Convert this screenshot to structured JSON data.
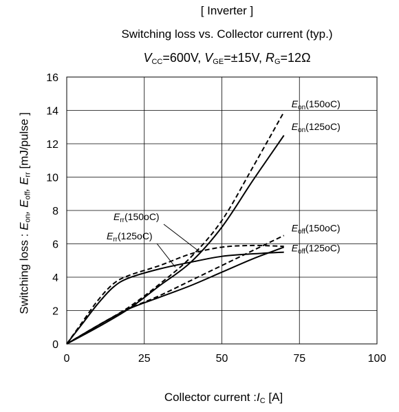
{
  "header": {
    "title": "[ Inverter ]",
    "subtitle": "Switching loss  vs.  Collector current  (typ.)",
    "conditions": {
      "vcc_sym": "V",
      "vcc_sub": "CC",
      "vcc_val": "=600V, ",
      "vge_sym": "V",
      "vge_sub": "GE",
      "vge_val": "=±15V, ",
      "rg_sym": "R",
      "rg_sub": "G",
      "rg_val": "=12Ω"
    }
  },
  "axes": {
    "xlabel_text": "Collector  current :",
    "xlabel_sym": "I",
    "xlabel_sub": "C",
    "xlabel_unit": " [A]",
    "ylabel_prefix": "Switching loss  : ",
    "ylabel_e1": "E",
    "ylabel_s1": "on",
    "ylabel_e2": ", E",
    "ylabel_s2": "off",
    "ylabel_e3": ", E",
    "ylabel_s3": "rr",
    "ylabel_unit": "  [mJ/pulse ]"
  },
  "chart_data": {
    "type": "line",
    "title": "[ Inverter ]",
    "subtitle": "Switching loss  vs.  Collector current  (typ.)",
    "xlabel": "Collector  current :IC [A]",
    "ylabel": "Switching loss  : Eon, Eoff, Err  [mJ/pulse ]",
    "xlim": [
      0,
      100
    ],
    "ylim": [
      0,
      16
    ],
    "xticks": [
      0,
      25,
      50,
      75,
      100
    ],
    "yticks": [
      0,
      2,
      4,
      6,
      8,
      10,
      12,
      14,
      16
    ],
    "grid": true,
    "series": [
      {
        "name": "Eon(150°C)",
        "style": "dashed",
        "x": [
          0,
          10,
          20,
          30,
          40,
          50,
          60,
          70
        ],
        "y": [
          0,
          1.1,
          2.2,
          3.6,
          5.2,
          7.4,
          10.6,
          13.9
        ]
      },
      {
        "name": "Eon(125°C)",
        "style": "solid",
        "x": [
          0,
          10,
          20,
          30,
          40,
          50,
          60,
          70
        ],
        "y": [
          0,
          1.0,
          2.1,
          3.5,
          4.9,
          7.0,
          9.8,
          12.5
        ]
      },
      {
        "name": "Eoff(150°C)",
        "style": "dashed",
        "x": [
          0,
          10,
          20,
          30,
          40,
          50,
          60,
          70
        ],
        "y": [
          0,
          1.1,
          2.1,
          2.9,
          3.8,
          4.7,
          5.6,
          6.5
        ]
      },
      {
        "name": "Eoff(125°C)",
        "style": "solid",
        "x": [
          0,
          10,
          20,
          30,
          40,
          50,
          60,
          70
        ],
        "y": [
          0,
          1.1,
          2.1,
          2.8,
          3.5,
          4.3,
          5.1,
          5.8
        ]
      },
      {
        "name": "Err(150°C)",
        "style": "dashed",
        "x": [
          0,
          5,
          10,
          15,
          20,
          30,
          40,
          50,
          60,
          70
        ],
        "y": [
          0,
          1.3,
          2.6,
          3.6,
          4.1,
          4.7,
          5.4,
          5.8,
          5.9,
          5.85
        ]
      },
      {
        "name": "Err(125°C)",
        "style": "solid",
        "x": [
          0,
          5,
          10,
          15,
          20,
          30,
          40,
          50,
          60,
          70
        ],
        "y": [
          0,
          1.2,
          2.4,
          3.4,
          3.95,
          4.5,
          4.9,
          5.25,
          5.4,
          5.5
        ]
      }
    ],
    "annotations": [
      {
        "symbol": "E",
        "sub": "on",
        "temp": "(150oC)",
        "x": 70,
        "y": 13.9
      },
      {
        "symbol": "E",
        "sub": "on",
        "temp": "(125oC)",
        "x": 70,
        "y": 12.5
      },
      {
        "symbol": "E",
        "sub": "off",
        "temp": "(150oC)",
        "x": 70,
        "y": 6.5
      },
      {
        "symbol": "E",
        "sub": "off",
        "temp": "(125oC)",
        "x": 70,
        "y": 5.8
      },
      {
        "symbol": "E",
        "sub": "rr",
        "temp": "(150oC)",
        "x": 43,
        "y": 5.5
      },
      {
        "symbol": "E",
        "sub": "rr",
        "temp": "(125oC)",
        "x": 35,
        "y": 4.6
      }
    ]
  }
}
